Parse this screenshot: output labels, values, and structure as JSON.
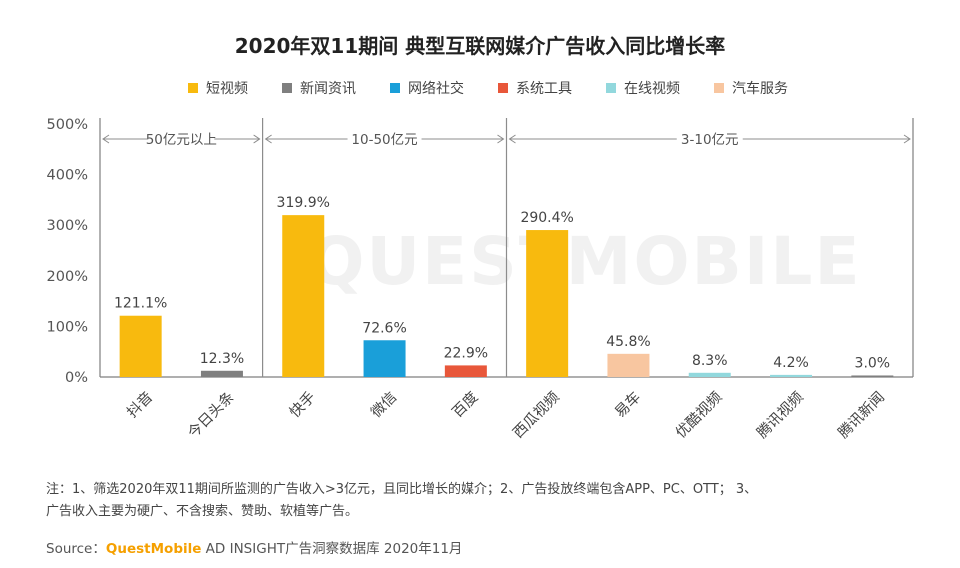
{
  "title": "2020年双11期间 典型互联网媒介广告收入同比增长率",
  "notes": {
    "line1": "注：1、筛选2020年双11期间所监测的广告收入>3亿元，且同比增长的媒介；2、广告投放终端包含APP、PC、OTT； 3、",
    "line2": "广告收入主要为硬广、不含搜索、赞助、软植等广告。"
  },
  "source": {
    "prefix": "Source：",
    "brand": "QuestMobile",
    "suffix": " AD INSIGHT广告洞察数据库 2020年11月"
  },
  "watermark": "QUESTMOBILE",
  "chart_data": {
    "type": "bar",
    "title": "2020年双11期间 典型互联网媒介广告收入同比增长率",
    "ylim": [
      0,
      500
    ],
    "yticks": [
      0,
      100,
      200,
      300,
      400,
      500
    ],
    "ytick_labels": [
      "0%",
      "100%",
      "200%",
      "300%",
      "400%",
      "500%"
    ],
    "legend": [
      {
        "name": "短视频",
        "color": "#F8BA0E"
      },
      {
        "name": "新闻资讯",
        "color": "#7F7F7F"
      },
      {
        "name": "网络社交",
        "color": "#1A9FD9"
      },
      {
        "name": "系统工具",
        "color": "#E8573A"
      },
      {
        "name": "在线视频",
        "color": "#92D8DD"
      },
      {
        "name": "汽车服务",
        "color": "#F8C6A0"
      }
    ],
    "legend_position": "top",
    "groups": [
      {
        "label": "50亿元以上",
        "from": 0,
        "to": 1
      },
      {
        "label": "10-50亿元",
        "from": 2,
        "to": 4
      },
      {
        "label": "3-10亿元",
        "from": 5,
        "to": 9
      }
    ],
    "categories": [
      "抖音",
      "今日头条",
      "快手",
      "微信",
      "百度",
      "西瓜视频",
      "易车",
      "优酷视频",
      "腾讯视频",
      "腾讯新闻"
    ],
    "values": [
      121.1,
      12.3,
      319.9,
      72.6,
      22.9,
      290.4,
      45.8,
      8.3,
      4.2,
      3.0
    ],
    "value_labels": [
      "121.1%",
      "12.3%",
      "319.9%",
      "72.6%",
      "22.9%",
      "290.4%",
      "45.8%",
      "8.3%",
      "4.2%",
      "3.0%"
    ],
    "colors": [
      "#F8BA0E",
      "#7F7F7F",
      "#F8BA0E",
      "#1A9FD9",
      "#E8573A",
      "#F8BA0E",
      "#F8C6A0",
      "#92D8DD",
      "#92D8DD",
      "#7F7F7F"
    ],
    "grid": false
  }
}
